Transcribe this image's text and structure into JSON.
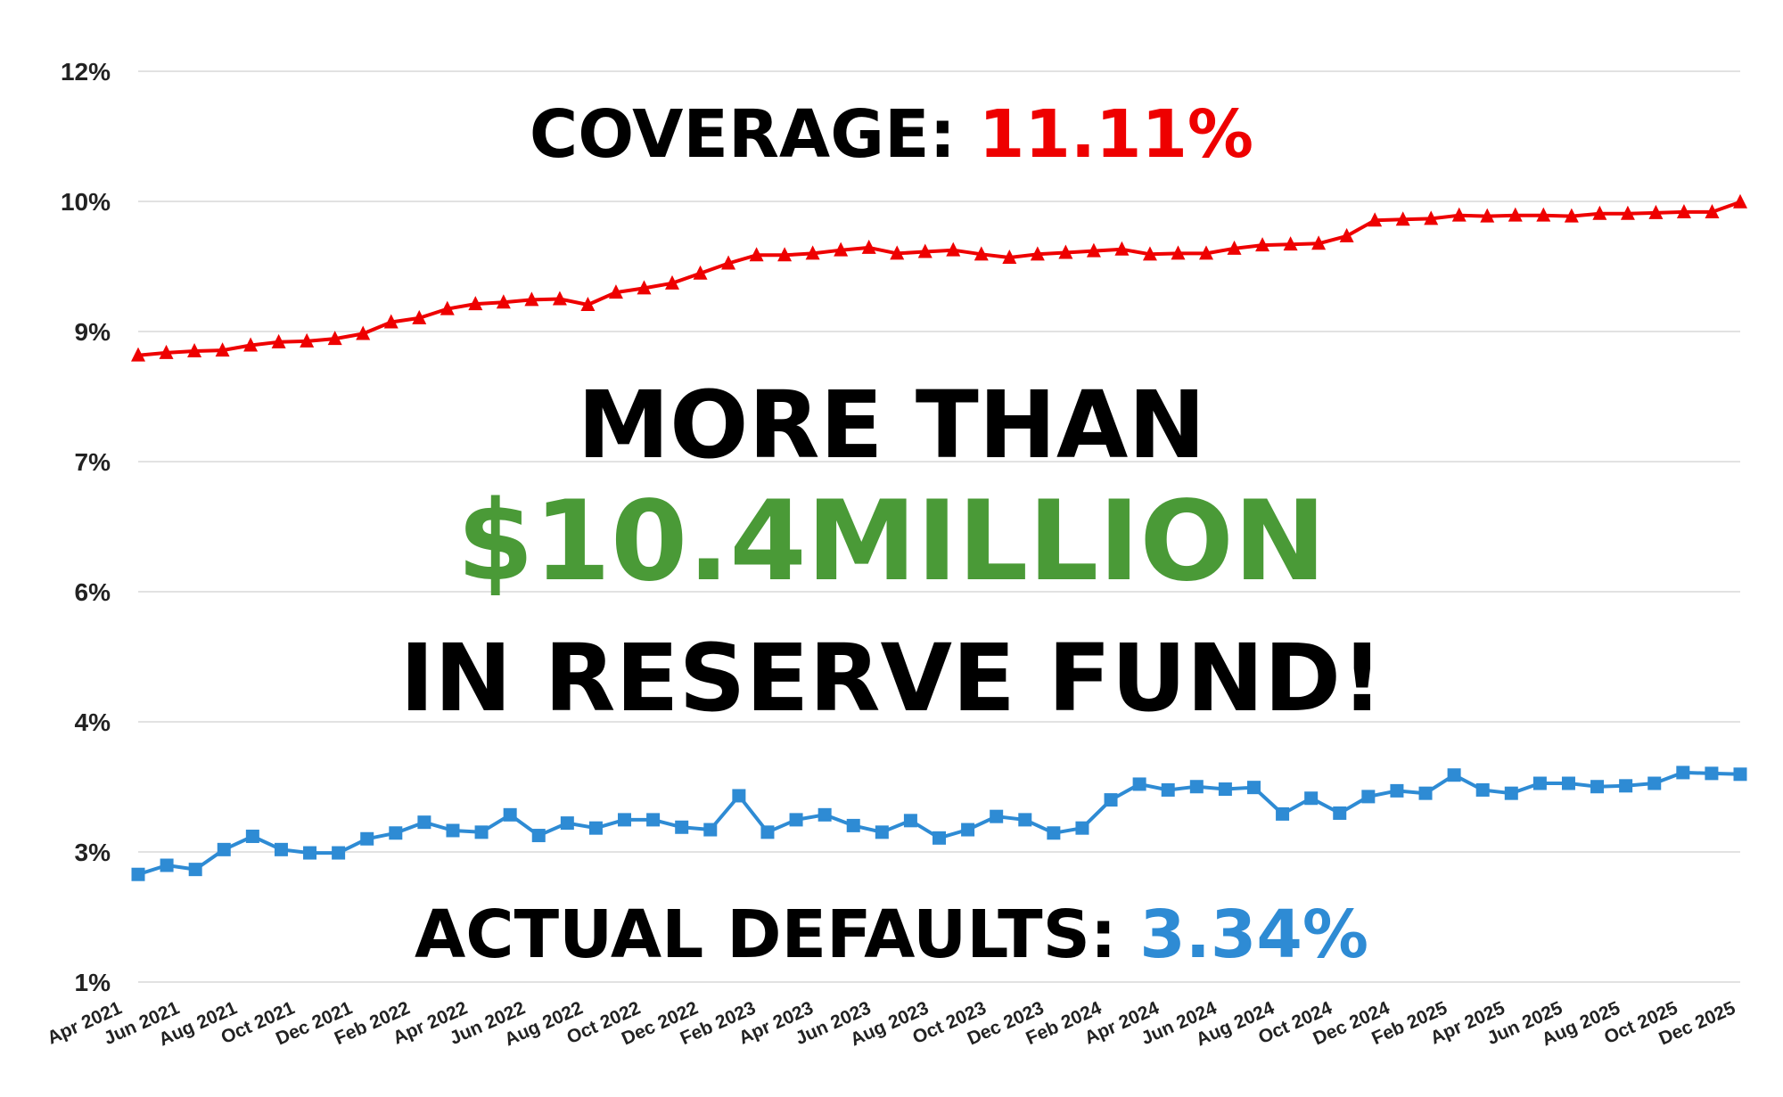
{
  "colors": {
    "coverage": "#ee0000",
    "defaults": "#2e8bd4",
    "amount": "#4a9a37",
    "grid": "#d9d9d9",
    "text": "#000000"
  },
  "overlay": {
    "coverage_label": "COVERAGE: ",
    "coverage_value": "11.11%",
    "headline_top": "MORE THAN",
    "headline_amount": "$10.4MILLION",
    "headline_bottom": "IN RESERVE FUND!",
    "defaults_label": "ACTUAL DEFAULTS: ",
    "defaults_value": "3.34%"
  },
  "chart_data": {
    "type": "line",
    "y_ticks": [
      "1%",
      "3%",
      "4%",
      "6%",
      "7%",
      "9%",
      "10%",
      "12%"
    ],
    "x_tick_labels": [
      "Apr 2021",
      "Jun 2021",
      "Aug 2021",
      "Oct 2021",
      "Dec 2021",
      "Feb 2022",
      "Apr 2022",
      "Jun 2022",
      "Aug 2022",
      "Oct 2022",
      "Dec 2022",
      "Feb 2023",
      "Apr 2023",
      "Jun 2023",
      "Aug 2023",
      "Oct 2023",
      "Dec 2023",
      "Feb 2024",
      "Apr 2024",
      "Jun 2024",
      "Aug 2024",
      "Oct 2024",
      "Dec 2024",
      "Feb 2025",
      "Apr 2025",
      "Jun 2025",
      "Aug 2025",
      "Oct 2025",
      "Dec 2025"
    ],
    "grid": true,
    "series": [
      {
        "marker": "triangle",
        "color": "#ee0000",
        "values": [
          8.57,
          8.6,
          8.62,
          8.63,
          8.69,
          8.73,
          8.74,
          8.77,
          8.83,
          8.97,
          9.02,
          9.13,
          9.19,
          9.21,
          9.24,
          9.25,
          9.18,
          9.33,
          9.38,
          9.44,
          9.56,
          9.68,
          9.78,
          9.78,
          9.8,
          9.84,
          9.87,
          9.8,
          9.82,
          9.84,
          9.79,
          9.75,
          9.79,
          9.81,
          9.83,
          9.85,
          9.79,
          9.8,
          9.8,
          9.86,
          9.9,
          9.91,
          9.92,
          10.01,
          10.2,
          10.21,
          10.22,
          10.26,
          10.25,
          10.26,
          10.26,
          10.25,
          10.28,
          10.28,
          10.29,
          10.3,
          10.3,
          10.42
        ]
      },
      {
        "marker": "square",
        "color": "#2e8bd4",
        "values": [
          2.3,
          2.41,
          2.36,
          2.6,
          2.76,
          2.6,
          2.56,
          2.56,
          2.73,
          2.8,
          2.93,
          2.83,
          2.81,
          3.02,
          2.77,
          2.92,
          2.86,
          2.96,
          2.96,
          2.87,
          2.84,
          3.25,
          2.81,
          2.96,
          3.02,
          2.89,
          2.81,
          2.95,
          2.74,
          2.84,
          3.0,
          2.96,
          2.8,
          2.86,
          3.2,
          3.39,
          3.32,
          3.36,
          3.33,
          3.35,
          3.03,
          3.22,
          3.04,
          3.24,
          3.31,
          3.28,
          3.5,
          3.32,
          3.28,
          3.4,
          3.4,
          3.36,
          3.37,
          3.4,
          3.53,
          3.52,
          3.51
        ]
      }
    ]
  }
}
